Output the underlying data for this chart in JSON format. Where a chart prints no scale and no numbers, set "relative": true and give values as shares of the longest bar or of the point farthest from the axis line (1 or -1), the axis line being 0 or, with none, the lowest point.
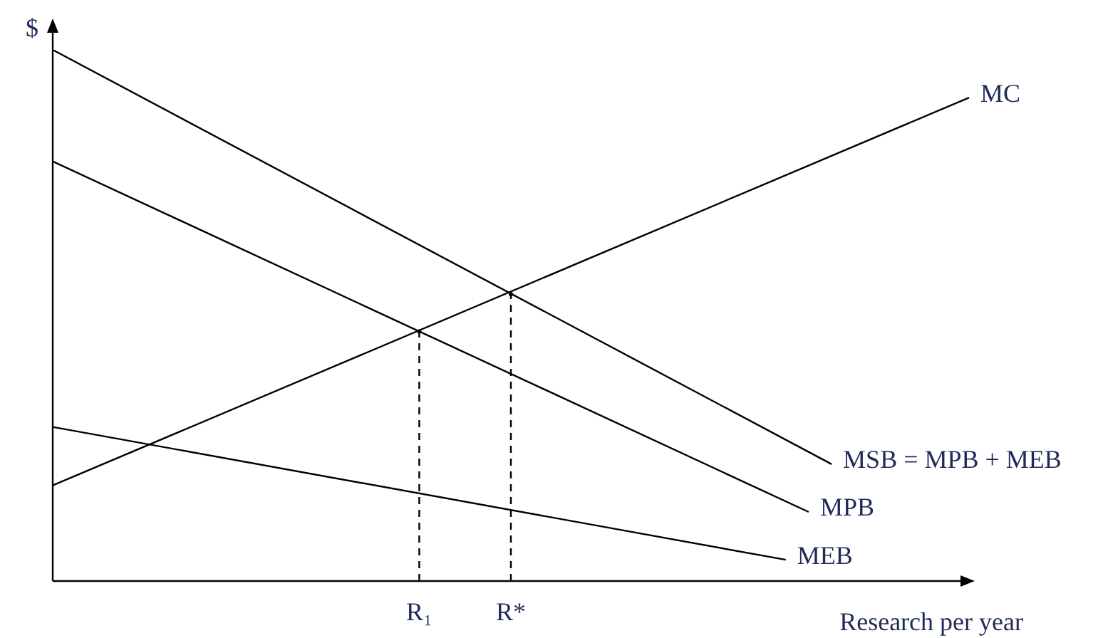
{
  "chart_data": {
    "type": "line",
    "relative": true,
    "xlabel": "Research per year",
    "ylabel": "$",
    "tick_labels": "x",
    "categories": [
      null,
      null,
      null,
      null,
      null,
      null,
      null,
      null,
      null,
      null,
      null,
      null,
      null,
      null,
      null,
      null,
      "R₁",
      null,
      null,
      null,
      "R*",
      null,
      null,
      null,
      null,
      null,
      null,
      null,
      null,
      null,
      null,
      null,
      null,
      null,
      null,
      null,
      null,
      null,
      null,
      null,
      null
    ],
    "series": [
      {
        "name": "MSB = MPB + MEB",
        "color": "#000000",
        "values": [
          1,
          null,
          null,
          null,
          null,
          null,
          null,
          null,
          null,
          null,
          null,
          null,
          null,
          null,
          null,
          null,
          null,
          null,
          null,
          null,
          null,
          null,
          null,
          null,
          null,
          null,
          null,
          null,
          null,
          null,
          null,
          null,
          null,
          null,
          0.22,
          null,
          null,
          null,
          null,
          null,
          null
        ]
      },
      {
        "name": "MPB",
        "color": "#000000",
        "values": [
          0.79,
          null,
          null,
          null,
          null,
          null,
          null,
          null,
          null,
          null,
          null,
          null,
          null,
          null,
          null,
          null,
          null,
          null,
          null,
          null,
          null,
          null,
          null,
          null,
          null,
          null,
          null,
          null,
          null,
          null,
          null,
          null,
          null,
          0.13,
          null,
          null,
          null,
          null,
          null,
          null,
          null
        ]
      },
      {
        "name": "MEB",
        "color": "#000000",
        "values": [
          0.29,
          null,
          null,
          null,
          null,
          null,
          null,
          null,
          null,
          null,
          null,
          null,
          null,
          null,
          null,
          null,
          null,
          null,
          null,
          null,
          null,
          null,
          null,
          null,
          null,
          null,
          null,
          null,
          null,
          null,
          null,
          null,
          0.04,
          null,
          null,
          null,
          null,
          null,
          null,
          null,
          null
        ]
      },
      {
        "name": "MC",
        "color": "#000000",
        "values": [
          0.18,
          null,
          null,
          null,
          null,
          null,
          null,
          null,
          null,
          null,
          null,
          null,
          null,
          null,
          null,
          null,
          null,
          null,
          null,
          null,
          null,
          null,
          null,
          null,
          null,
          null,
          null,
          null,
          null,
          null,
          null,
          null,
          null,
          null,
          null,
          null,
          null,
          null,
          null,
          null,
          0.91
        ]
      },
      {
        "type": "lollipop",
        "color": "#000000",
        "line_style": "dashed",
        "values": [
          null,
          null,
          null,
          null,
          null,
          null,
          null,
          null,
          null,
          null,
          null,
          null,
          null,
          null,
          null,
          null,
          0.47,
          null,
          null,
          null,
          0.54,
          null,
          null,
          null,
          null,
          null,
          null,
          null,
          null,
          null,
          null,
          null,
          null,
          null,
          null,
          null,
          null,
          null,
          null,
          null,
          null
        ]
      }
    ]
  }
}
